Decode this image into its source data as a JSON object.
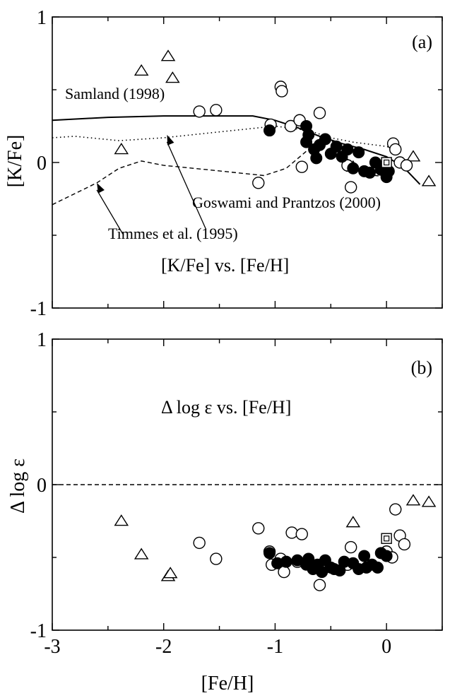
{
  "chart_data": [
    {
      "panel": "a",
      "type": "scatter",
      "panel_label": "(a)",
      "subtitle": "[K/Fe] vs. [Fe/H]",
      "xlabel": "[Fe/H]",
      "ylabel": "[K/Fe]",
      "xlim": [
        -3,
        0.5
      ],
      "ylim": [
        -1,
        1
      ],
      "xticks": [
        -3,
        -2,
        -1,
        0
      ],
      "yticks": [
        -1,
        0,
        1
      ],
      "series": [
        {
          "marker": "triangle-open",
          "points": [
            [
              -2.38,
              0.09
            ],
            [
              -2.2,
              0.63
            ],
            [
              -1.96,
              0.73
            ],
            [
              -1.92,
              0.58
            ],
            [
              -0.3,
              -0.03
            ],
            [
              0.24,
              0.04
            ],
            [
              0.38,
              -0.13
            ]
          ]
        },
        {
          "marker": "circle-open",
          "points": [
            [
              -1.68,
              0.35
            ],
            [
              -1.53,
              0.36
            ],
            [
              -1.15,
              -0.14
            ],
            [
              -1.04,
              0.26
            ],
            [
              -0.95,
              0.52
            ],
            [
              -0.94,
              0.49
            ],
            [
              -0.86,
              0.25
            ],
            [
              -0.78,
              0.29
            ],
            [
              -0.76,
              -0.03
            ],
            [
              -0.6,
              0.34
            ],
            [
              -0.35,
              -0.02
            ],
            [
              -0.32,
              -0.17
            ],
            [
              0.06,
              0.13
            ],
            [
              0.08,
              0.09
            ],
            [
              0.12,
              0.0
            ],
            [
              0.18,
              -0.02
            ]
          ]
        },
        {
          "marker": "circle-filled",
          "points": [
            [
              -1.05,
              0.22
            ],
            [
              -0.72,
              0.25
            ],
            [
              -0.72,
              0.14
            ],
            [
              -0.7,
              0.19
            ],
            [
              -0.65,
              0.09
            ],
            [
              -0.63,
              0.03
            ],
            [
              -0.6,
              0.12
            ],
            [
              -0.55,
              0.16
            ],
            [
              -0.5,
              0.06
            ],
            [
              -0.45,
              0.11
            ],
            [
              -0.4,
              0.04
            ],
            [
              -0.35,
              0.09
            ],
            [
              -0.3,
              -0.04
            ],
            [
              -0.25,
              0.07
            ],
            [
              -0.2,
              -0.06
            ],
            [
              -0.15,
              -0.07
            ],
            [
              -0.1,
              0.0
            ],
            [
              -0.05,
              -0.05
            ],
            [
              0.0,
              -0.1
            ],
            [
              0.02,
              -0.06
            ]
          ]
        },
        {
          "marker": "square-boxed",
          "points": [
            [
              0.0,
              0.0
            ]
          ]
        }
      ],
      "model_curves": [
        {
          "name": "Samland (1998)",
          "style": "solid",
          "points": [
            [
              -3,
              0.29
            ],
            [
              -2.5,
              0.31
            ],
            [
              -2,
              0.32
            ],
            [
              -1.5,
              0.32
            ],
            [
              -1.2,
              0.32
            ],
            [
              -1.0,
              0.29
            ],
            [
              -0.8,
              0.24
            ],
            [
              -0.6,
              0.18
            ],
            [
              -0.4,
              0.13
            ],
            [
              -0.2,
              0.09
            ],
            [
              0.0,
              0.04
            ],
            [
              0.15,
              -0.03
            ],
            [
              0.3,
              -0.15
            ]
          ]
        },
        {
          "name": "Goswami and Prantzos (2000)",
          "style": "dotted",
          "points": [
            [
              -3,
              0.17
            ],
            [
              -2.8,
              0.18
            ],
            [
              -2.4,
              0.15
            ],
            [
              -2.0,
              0.17
            ],
            [
              -1.5,
              0.21
            ],
            [
              -1.0,
              0.25
            ],
            [
              -0.7,
              0.22
            ],
            [
              -0.5,
              0.17
            ],
            [
              -0.3,
              0.14
            ],
            [
              0.0,
              0.11
            ],
            [
              0.1,
              0.09
            ]
          ]
        },
        {
          "name": "Timmes et al. (1995)",
          "style": "dashed",
          "points": [
            [
              -3,
              -0.29
            ],
            [
              -2.6,
              -0.14
            ],
            [
              -2.4,
              -0.04
            ],
            [
              -2.2,
              0.01
            ],
            [
              -2.0,
              -0.02
            ],
            [
              -1.6,
              -0.05
            ],
            [
              -1.1,
              -0.09
            ],
            [
              -0.9,
              -0.04
            ],
            [
              -0.7,
              0.09
            ],
            [
              -0.55,
              0.17
            ],
            [
              -0.45,
              0.13
            ],
            [
              -0.3,
              -0.03
            ],
            [
              -0.1,
              -0.09
            ],
            [
              0.05,
              -0.1
            ]
          ]
        }
      ],
      "annotations": [
        {
          "text": "Samland (1998)"
        },
        {
          "text": "Goswami and Prantzos (2000)",
          "arrow_to": [
            -1.97,
            0.19
          ]
        },
        {
          "text": "Timmes et al. (1995)",
          "arrow_to": [
            -2.6,
            -0.14
          ]
        }
      ]
    },
    {
      "panel": "b",
      "type": "scatter",
      "panel_label": "(b)",
      "subtitle": "Δ log ε vs. [Fe/H]",
      "xlabel": "[Fe/H]",
      "ylabel": "Δ log ε",
      "xlim": [
        -3,
        0.5
      ],
      "ylim": [
        -1,
        1
      ],
      "xticks": [
        -3,
        -2,
        -1,
        0
      ],
      "yticks": [
        -1,
        0,
        1
      ],
      "reference_line": {
        "y": 0,
        "style": "dashed"
      },
      "series": [
        {
          "marker": "triangle-open",
          "points": [
            [
              -2.38,
              -0.25
            ],
            [
              -2.2,
              -0.48
            ],
            [
              -1.96,
              -0.63
            ],
            [
              -1.94,
              -0.61
            ],
            [
              -0.3,
              -0.26
            ],
            [
              0.24,
              -0.11
            ],
            [
              0.38,
              -0.12
            ]
          ]
        },
        {
          "marker": "circle-open",
          "points": [
            [
              -1.68,
              -0.4
            ],
            [
              -1.53,
              -0.51
            ],
            [
              -1.15,
              -0.3
            ],
            [
              -1.05,
              -0.46
            ],
            [
              -1.03,
              -0.55
            ],
            [
              -0.95,
              -0.51
            ],
            [
              -0.92,
              -0.6
            ],
            [
              -0.85,
              -0.33
            ],
            [
              -0.8,
              -0.53
            ],
            [
              -0.76,
              -0.34
            ],
            [
              -0.6,
              -0.69
            ],
            [
              -0.35,
              -0.55
            ],
            [
              -0.32,
              -0.43
            ],
            [
              0.0,
              -0.46
            ],
            [
              0.05,
              -0.5
            ],
            [
              0.08,
              -0.17
            ],
            [
              0.12,
              -0.35
            ],
            [
              0.16,
              -0.41
            ]
          ]
        },
        {
          "marker": "circle-filled",
          "points": [
            [
              -1.05,
              -0.47
            ],
            [
              -0.98,
              -0.54
            ],
            [
              -0.9,
              -0.53
            ],
            [
              -0.8,
              -0.52
            ],
            [
              -0.72,
              -0.55
            ],
            [
              -0.7,
              -0.51
            ],
            [
              -0.66,
              -0.58
            ],
            [
              -0.62,
              -0.55
            ],
            [
              -0.58,
              -0.6
            ],
            [
              -0.55,
              -0.52
            ],
            [
              -0.5,
              -0.57
            ],
            [
              -0.47,
              -0.58
            ],
            [
              -0.42,
              -0.59
            ],
            [
              -0.38,
              -0.53
            ],
            [
              -0.3,
              -0.54
            ],
            [
              -0.25,
              -0.58
            ],
            [
              -0.2,
              -0.49
            ],
            [
              -0.18,
              -0.57
            ],
            [
              -0.13,
              -0.55
            ],
            [
              -0.08,
              -0.57
            ],
            [
              -0.05,
              -0.47
            ],
            [
              0.0,
              -0.49
            ]
          ]
        },
        {
          "marker": "square-boxed",
          "points": [
            [
              0.0,
              -0.37
            ]
          ]
        }
      ]
    }
  ]
}
